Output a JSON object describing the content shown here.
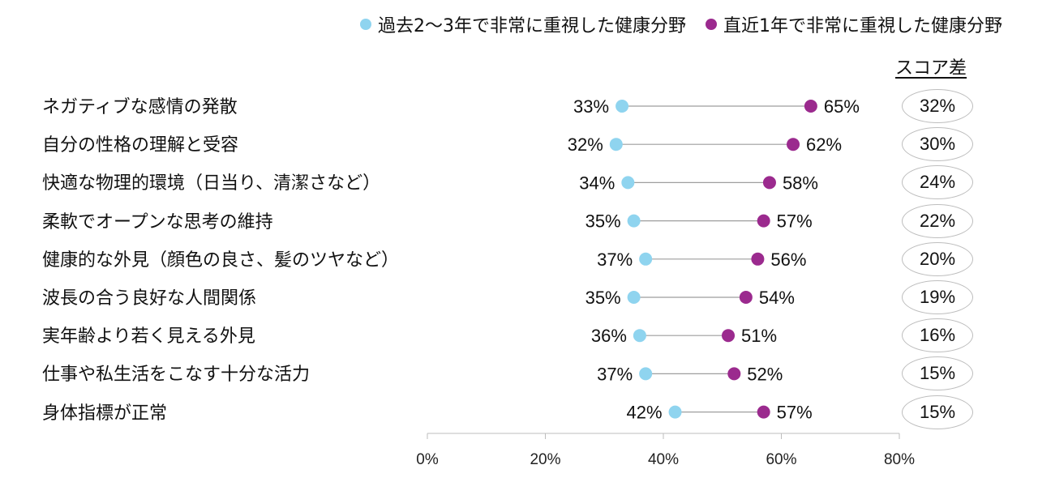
{
  "chart_data": {
    "type": "dumbbell",
    "categories": [
      "ネガティブな感情の発散",
      "自分の性格の理解と受容",
      "快適な物理的環境（日当り、清潔さなど）",
      "柔軟でオープンな思考の維持",
      "健康的な外見（顔色の良さ、髪のツヤなど）",
      "波長の合う良好な人間関係",
      "実年齢より若く見える外見",
      "仕事や私生活をこなす十分な活力",
      "身体指標が正常"
    ],
    "series": [
      {
        "name": "過去2〜3年で非常に重視した健康分野",
        "color": "#8fd4ef",
        "values": [
          33,
          32,
          34,
          35,
          37,
          35,
          36,
          37,
          42
        ],
        "labels": [
          "33%",
          "32%",
          "34%",
          "35%",
          "37%",
          "35%",
          "36%",
          "37%",
          "42%"
        ]
      },
      {
        "name": "直近1年で非常に重視した健康分野",
        "color": "#9b2a8e",
        "values": [
          65,
          62,
          58,
          57,
          56,
          54,
          51,
          52,
          57
        ],
        "labels": [
          "65%",
          "62%",
          "58%",
          "57%",
          "56%",
          "54%",
          "51%",
          "52%",
          "57%"
        ]
      }
    ],
    "diff_header": "スコア差",
    "diffs": [
      "32%",
      "30%",
      "24%",
      "22%",
      "20%",
      "19%",
      "16%",
      "15%",
      "15%"
    ],
    "xlim": [
      0,
      80
    ],
    "xticks": [
      0,
      20,
      40,
      60,
      80
    ],
    "xtick_labels": [
      "0%",
      "20%",
      "40%",
      "60%",
      "80%"
    ]
  }
}
